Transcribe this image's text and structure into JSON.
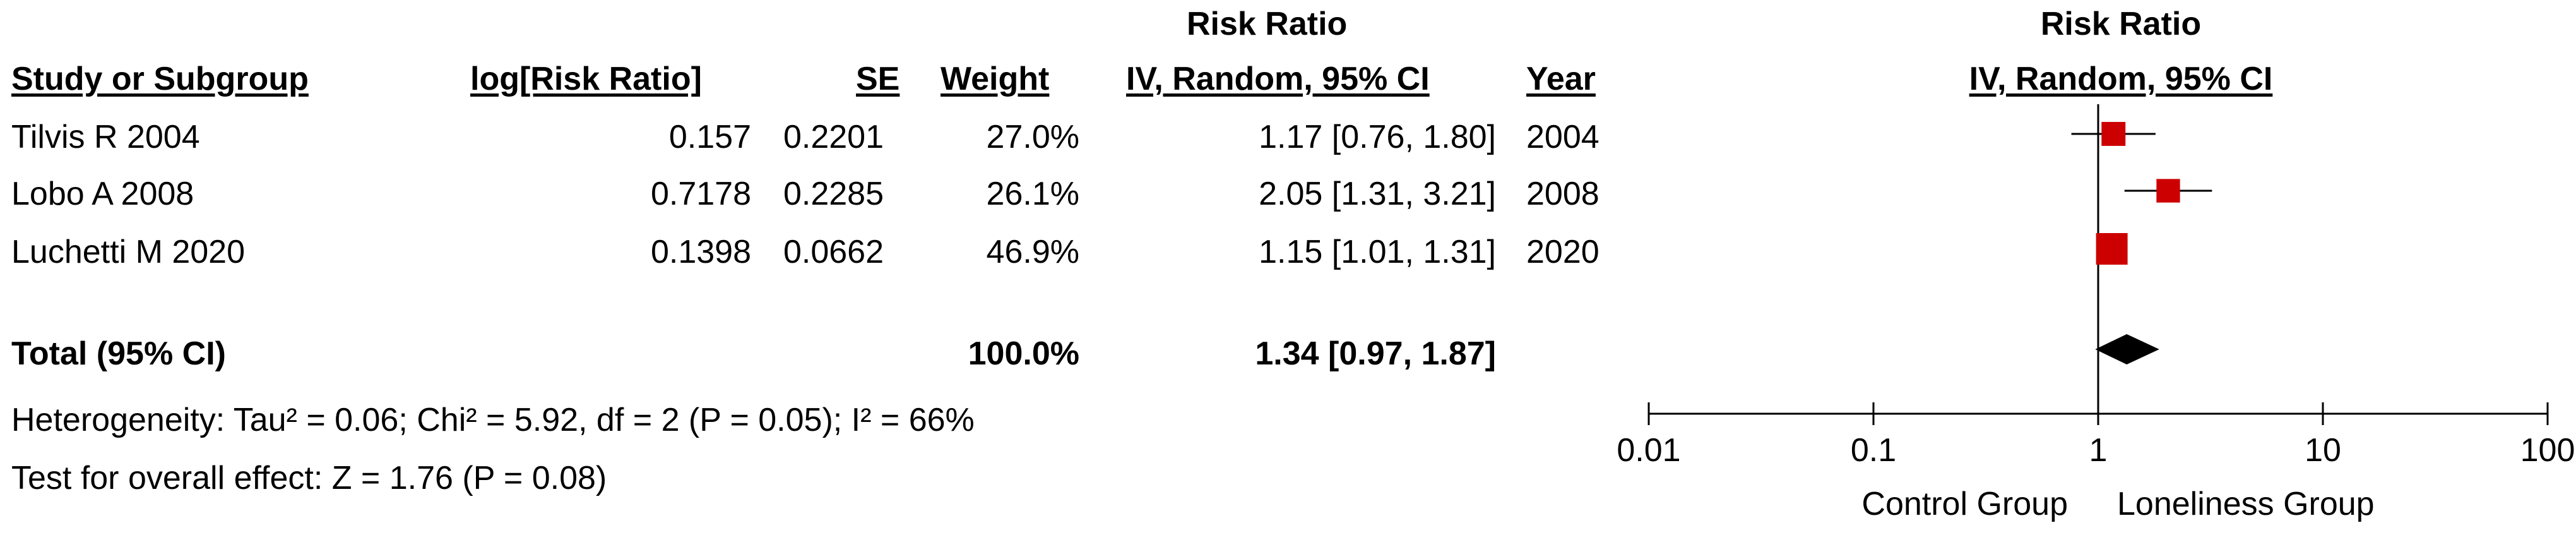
{
  "header": {
    "risk_ratio_label": "Risk Ratio",
    "col_study": "Study or Subgroup",
    "col_log_rr": "log[Risk Ratio]",
    "col_se": "SE",
    "col_weight": "Weight",
    "col_method": "IV, Random, 95% CI",
    "col_year": "Year",
    "plot_title": "Risk Ratio",
    "plot_method": "IV, Random, 95% CI"
  },
  "studies": [
    {
      "name": "Tilvis R 2004",
      "log_rr": "0.157",
      "se": "0.2201",
      "weight": "27.0%",
      "ci_text": "1.17 [0.76, 1.80]",
      "year": "2004"
    },
    {
      "name": "Lobo A 2008",
      "log_rr": "0.7178",
      "se": "0.2285",
      "weight": "26.1%",
      "ci_text": "2.05 [1.31, 3.21]",
      "year": "2008"
    },
    {
      "name": "Luchetti M 2020",
      "log_rr": "0.1398",
      "se": "0.0662",
      "weight": "46.9%",
      "ci_text": "1.15 [1.01, 1.31]",
      "year": "2020"
    }
  ],
  "total": {
    "label": "Total (95% CI)",
    "weight": "100.0%",
    "ci_text": "1.34 [0.97, 1.87]"
  },
  "heterogeneity_text": "Heterogeneity: Tau² = 0.06; Chi² = 5.92, df = 2 (P = 0.05); I² = 66%",
  "overall_effect_text": "Test for overall effect: Z = 1.76 (P = 0.08)",
  "chart_data": {
    "type": "forest",
    "title": "Risk Ratio",
    "subtitle": "IV, Random, 95% CI",
    "x_scale": "log",
    "xlim": [
      0.01,
      100
    ],
    "x_ticks": [
      "0.01",
      "0.1",
      "1",
      "10",
      "100"
    ],
    "reference_line": 1,
    "left_label": "Control Group",
    "right_label": "Loneliness Group",
    "marker_color": "#cc0000",
    "summary_color": "#000000",
    "studies": [
      {
        "name": "Tilvis R 2004",
        "estimate": 1.17,
        "lower": 0.76,
        "upper": 1.8,
        "weight": 27.0
      },
      {
        "name": "Lobo A 2008",
        "estimate": 2.05,
        "lower": 1.31,
        "upper": 3.21,
        "weight": 26.1
      },
      {
        "name": "Luchetti M 2020",
        "estimate": 1.15,
        "lower": 1.01,
        "upper": 1.31,
        "weight": 46.9
      }
    ],
    "summary": {
      "estimate": 1.34,
      "lower": 0.97,
      "upper": 1.87
    }
  }
}
